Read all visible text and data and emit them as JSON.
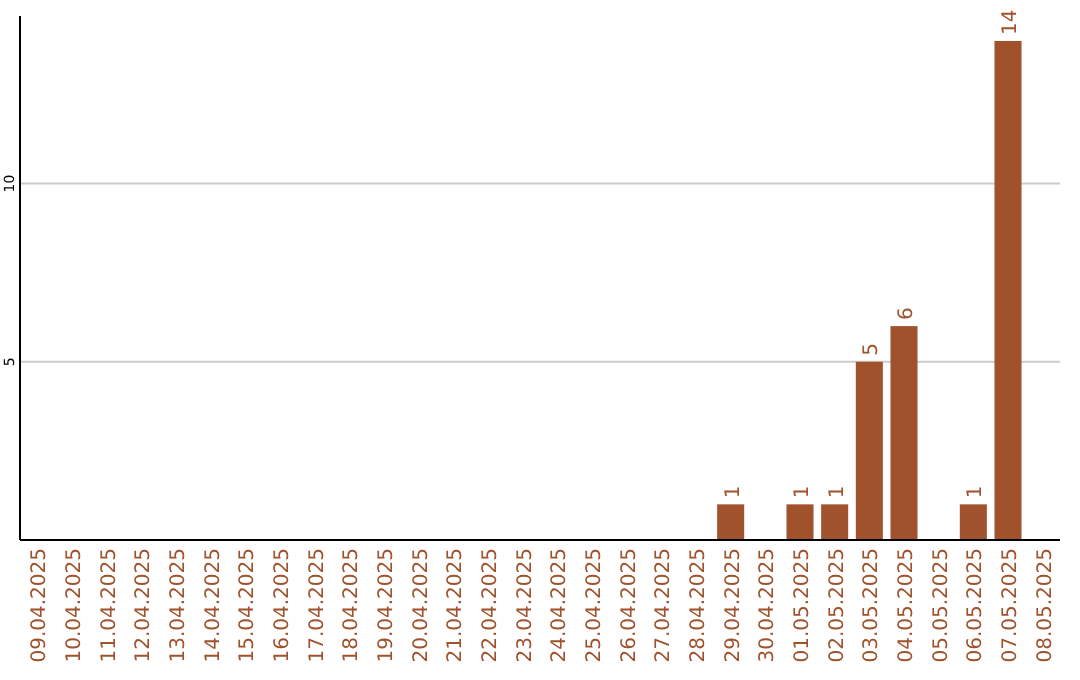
{
  "chart_data": {
    "type": "bar",
    "categories": [
      "09.04.2025",
      "10.04.2025",
      "11.04.2025",
      "12.04.2025",
      "13.04.2025",
      "14.04.2025",
      "15.04.2025",
      "16.04.2025",
      "17.04.2025",
      "18.04.2025",
      "19.04.2025",
      "20.04.2025",
      "21.04.2025",
      "22.04.2025",
      "23.04.2025",
      "24.04.2025",
      "25.04.2025",
      "26.04.2025",
      "27.04.2025",
      "28.04.2025",
      "29.04.2025",
      "30.04.2025",
      "01.05.2025",
      "02.05.2025",
      "03.05.2025",
      "04.05.2025",
      "05.05.2025",
      "06.05.2025",
      "07.05.2025",
      "08.05.2025"
    ],
    "values": [
      0,
      0,
      0,
      0,
      0,
      0,
      0,
      0,
      0,
      0,
      0,
      0,
      0,
      0,
      0,
      0,
      0,
      0,
      0,
      0,
      1,
      0,
      1,
      1,
      5,
      6,
      0,
      1,
      14,
      0
    ],
    "value_labels": [
      null,
      null,
      null,
      null,
      null,
      null,
      null,
      null,
      null,
      null,
      null,
      null,
      null,
      null,
      null,
      null,
      null,
      null,
      null,
      null,
      "1",
      null,
      "1",
      "1",
      "5",
      "6",
      null,
      "1",
      "14",
      null
    ],
    "color": "#a0522d",
    "ylim": [
      0,
      14.7
    ],
    "yticks": [
      5,
      10
    ],
    "grid": "y"
  }
}
